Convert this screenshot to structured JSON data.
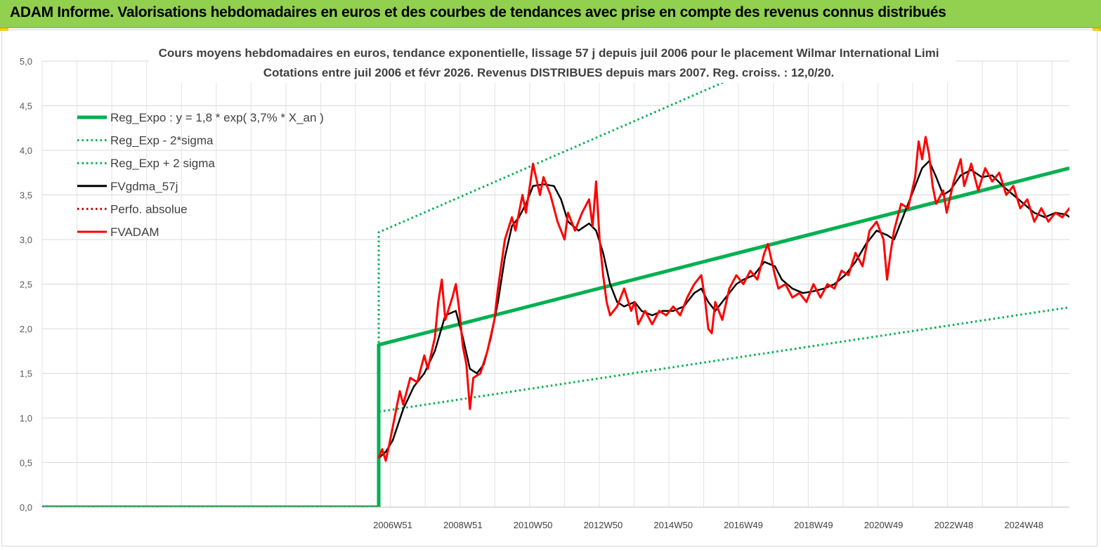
{
  "header": {
    "banner_title": "ADAM Informe. Valorisations hebdomadaires en euros et des courbes de tendances avec prise en compte des revenus connus distribués",
    "banner_color": "#92d050"
  },
  "chart_data": {
    "type": "line",
    "title": "Cours moyens hebdomadaires en euros, tendance exponentielle, lissage 57 j depuis juil 2006 pour le placement Wilmar International Limi",
    "subtitle": "Cotations entre juil 2006 et févr 2026.  Revenus DISTRIBUES depuis mars 2007. Reg. croiss. : 12,0/20.",
    "ylim": [
      0,
      5
    ],
    "y_ticks": [
      "0,0",
      "0,5",
      "1,0",
      "1,5",
      "2,0",
      "2,5",
      "3,0",
      "3,5",
      "4,0",
      "4,5",
      "5,0"
    ],
    "x_ticks": [
      "2006W51",
      "2008W51",
      "2010W50",
      "2012W50",
      "2014W50",
      "2016W49",
      "2018W49",
      "2020W49",
      "2022W48",
      "2024W48"
    ],
    "xlim": [
      1997.0,
      2026.3
    ],
    "grid": true,
    "legend_position": "top-left",
    "series": [
      {
        "name": "Reg_Expo : y = 1,8 * exp( 3,7% *  X_an )",
        "color": "#00b050",
        "style": "solid",
        "points": [
          [
            1997.0,
            0
          ],
          [
            2006.6,
            0
          ],
          [
            2006.6,
            1.82
          ],
          [
            2026.3,
            3.8
          ]
        ]
      },
      {
        "name": "Reg_Exp - 2*sigma",
        "color": "#00b050",
        "style": "dotted",
        "points": [
          [
            2006.6,
            0
          ],
          [
            2006.6,
            1.07
          ],
          [
            2026.3,
            2.24
          ]
        ]
      },
      {
        "name": "Reg_Exp + 2 sigma",
        "color": "#00b050",
        "style": "dotted",
        "points": [
          [
            2006.6,
            0
          ],
          [
            2006.6,
            3.08
          ],
          [
            2026.3,
            6.45
          ]
        ]
      },
      {
        "name": "FVgdma_57j",
        "color": "#000000",
        "style": "solid",
        "points": [
          [
            2006.6,
            0.55
          ],
          [
            2006.8,
            0.62
          ],
          [
            2007.0,
            0.75
          ],
          [
            2007.3,
            1.1
          ],
          [
            2007.6,
            1.35
          ],
          [
            2007.9,
            1.5
          ],
          [
            2008.2,
            1.75
          ],
          [
            2008.5,
            2.15
          ],
          [
            2008.8,
            2.2
          ],
          [
            2009.0,
            1.9
          ],
          [
            2009.2,
            1.55
          ],
          [
            2009.4,
            1.5
          ],
          [
            2009.6,
            1.6
          ],
          [
            2009.8,
            1.9
          ],
          [
            2010.0,
            2.3
          ],
          [
            2010.2,
            2.8
          ],
          [
            2010.4,
            3.15
          ],
          [
            2010.6,
            3.25
          ],
          [
            2010.8,
            3.4
          ],
          [
            2011.0,
            3.6
          ],
          [
            2011.3,
            3.62
          ],
          [
            2011.6,
            3.6
          ],
          [
            2011.8,
            3.45
          ],
          [
            2012.0,
            3.2
          ],
          [
            2012.3,
            3.1
          ],
          [
            2012.6,
            3.18
          ],
          [
            2012.8,
            3.1
          ],
          [
            2013.0,
            2.85
          ],
          [
            2013.2,
            2.5
          ],
          [
            2013.4,
            2.3
          ],
          [
            2013.6,
            2.25
          ],
          [
            2013.9,
            2.3
          ],
          [
            2014.1,
            2.2
          ],
          [
            2014.4,
            2.15
          ],
          [
            2014.7,
            2.2
          ],
          [
            2015.0,
            2.2
          ],
          [
            2015.3,
            2.25
          ],
          [
            2015.6,
            2.4
          ],
          [
            2015.8,
            2.45
          ],
          [
            2016.0,
            2.3
          ],
          [
            2016.2,
            2.2
          ],
          [
            2016.5,
            2.35
          ],
          [
            2016.8,
            2.5
          ],
          [
            2017.0,
            2.55
          ],
          [
            2017.3,
            2.6
          ],
          [
            2017.6,
            2.75
          ],
          [
            2017.9,
            2.7
          ],
          [
            2018.1,
            2.55
          ],
          [
            2018.4,
            2.45
          ],
          [
            2018.7,
            2.4
          ],
          [
            2019.0,
            2.42
          ],
          [
            2019.3,
            2.45
          ],
          [
            2019.6,
            2.5
          ],
          [
            2019.9,
            2.6
          ],
          [
            2020.2,
            2.75
          ],
          [
            2020.5,
            2.95
          ],
          [
            2020.8,
            3.1
          ],
          [
            2021.1,
            3.05
          ],
          [
            2021.3,
            3.0
          ],
          [
            2021.5,
            3.2
          ],
          [
            2021.8,
            3.5
          ],
          [
            2022.1,
            3.8
          ],
          [
            2022.3,
            3.88
          ],
          [
            2022.5,
            3.7
          ],
          [
            2022.7,
            3.5
          ],
          [
            2022.9,
            3.55
          ],
          [
            2023.2,
            3.72
          ],
          [
            2023.5,
            3.78
          ],
          [
            2023.8,
            3.7
          ],
          [
            2024.1,
            3.72
          ],
          [
            2024.4,
            3.6
          ],
          [
            2024.7,
            3.5
          ],
          [
            2025.0,
            3.4
          ],
          [
            2025.3,
            3.3
          ],
          [
            2025.6,
            3.25
          ],
          [
            2025.9,
            3.3
          ],
          [
            2026.2,
            3.28
          ],
          [
            2026.5,
            3.2
          ],
          [
            2026.8,
            3.25
          ],
          [
            2027.0,
            3.35
          ],
          [
            2027.3,
            3.48
          ]
        ]
      },
      {
        "name": "Perfo. absolue",
        "color": "#c00000",
        "style": "dotted",
        "points": [
          [
            1997.0,
            0
          ],
          [
            2006.6,
            0
          ]
        ]
      },
      {
        "name": "FVADAM",
        "color": "#ff0000",
        "style": "solid",
        "points": [
          [
            2006.6,
            0.55
          ],
          [
            2006.7,
            0.65
          ],
          [
            2006.8,
            0.52
          ],
          [
            2006.9,
            0.7
          ],
          [
            2007.0,
            0.9
          ],
          [
            2007.2,
            1.3
          ],
          [
            2007.3,
            1.15
          ],
          [
            2007.5,
            1.45
          ],
          [
            2007.7,
            1.4
          ],
          [
            2007.9,
            1.7
          ],
          [
            2008.0,
            1.55
          ],
          [
            2008.2,
            1.9
          ],
          [
            2008.3,
            2.3
          ],
          [
            2008.4,
            2.55
          ],
          [
            2008.5,
            2.1
          ],
          [
            2008.7,
            2.35
          ],
          [
            2008.8,
            2.5
          ],
          [
            2008.9,
            2.2
          ],
          [
            2009.0,
            1.8
          ],
          [
            2009.1,
            1.6
          ],
          [
            2009.2,
            1.1
          ],
          [
            2009.3,
            1.45
          ],
          [
            2009.5,
            1.5
          ],
          [
            2009.7,
            1.75
          ],
          [
            2009.9,
            2.1
          ],
          [
            2010.0,
            2.45
          ],
          [
            2010.2,
            3.0
          ],
          [
            2010.4,
            3.25
          ],
          [
            2010.5,
            3.1
          ],
          [
            2010.7,
            3.5
          ],
          [
            2010.8,
            3.3
          ],
          [
            2011.0,
            3.85
          ],
          [
            2011.2,
            3.5
          ],
          [
            2011.3,
            3.7
          ],
          [
            2011.5,
            3.5
          ],
          [
            2011.7,
            3.2
          ],
          [
            2011.9,
            3.0
          ],
          [
            2012.0,
            3.3
          ],
          [
            2012.2,
            3.1
          ],
          [
            2012.4,
            3.3
          ],
          [
            2012.6,
            3.45
          ],
          [
            2012.7,
            3.15
          ],
          [
            2012.8,
            3.65
          ],
          [
            2012.9,
            3.0
          ],
          [
            2013.0,
            2.6
          ],
          [
            2013.1,
            2.3
          ],
          [
            2013.2,
            2.15
          ],
          [
            2013.4,
            2.25
          ],
          [
            2013.6,
            2.45
          ],
          [
            2013.8,
            2.2
          ],
          [
            2013.9,
            2.3
          ],
          [
            2014.0,
            2.05
          ],
          [
            2014.2,
            2.2
          ],
          [
            2014.4,
            2.05
          ],
          [
            2014.6,
            2.2
          ],
          [
            2014.8,
            2.15
          ],
          [
            2015.0,
            2.25
          ],
          [
            2015.2,
            2.15
          ],
          [
            2015.4,
            2.35
          ],
          [
            2015.6,
            2.5
          ],
          [
            2015.8,
            2.6
          ],
          [
            2015.9,
            2.35
          ],
          [
            2016.0,
            2.0
          ],
          [
            2016.1,
            1.95
          ],
          [
            2016.2,
            2.3
          ],
          [
            2016.4,
            2.1
          ],
          [
            2016.6,
            2.45
          ],
          [
            2016.8,
            2.6
          ],
          [
            2017.0,
            2.5
          ],
          [
            2017.2,
            2.65
          ],
          [
            2017.4,
            2.55
          ],
          [
            2017.6,
            2.85
          ],
          [
            2017.7,
            2.95
          ],
          [
            2017.9,
            2.6
          ],
          [
            2018.0,
            2.45
          ],
          [
            2018.2,
            2.5
          ],
          [
            2018.4,
            2.35
          ],
          [
            2018.6,
            2.4
          ],
          [
            2018.8,
            2.3
          ],
          [
            2019.0,
            2.5
          ],
          [
            2019.2,
            2.35
          ],
          [
            2019.4,
            2.5
          ],
          [
            2019.6,
            2.45
          ],
          [
            2019.8,
            2.65
          ],
          [
            2020.0,
            2.6
          ],
          [
            2020.2,
            2.85
          ],
          [
            2020.4,
            2.7
          ],
          [
            2020.6,
            3.1
          ],
          [
            2020.8,
            3.2
          ],
          [
            2021.0,
            3.0
          ],
          [
            2021.1,
            2.55
          ],
          [
            2021.2,
            2.85
          ],
          [
            2021.3,
            3.1
          ],
          [
            2021.5,
            3.4
          ],
          [
            2021.7,
            3.35
          ],
          [
            2021.9,
            3.7
          ],
          [
            2022.0,
            4.1
          ],
          [
            2022.1,
            3.9
          ],
          [
            2022.2,
            4.15
          ],
          [
            2022.3,
            3.95
          ],
          [
            2022.4,
            3.6
          ],
          [
            2022.5,
            3.4
          ],
          [
            2022.7,
            3.55
          ],
          [
            2022.8,
            3.3
          ],
          [
            2023.0,
            3.65
          ],
          [
            2023.2,
            3.9
          ],
          [
            2023.3,
            3.6
          ],
          [
            2023.5,
            3.85
          ],
          [
            2023.7,
            3.55
          ],
          [
            2023.9,
            3.8
          ],
          [
            2024.1,
            3.65
          ],
          [
            2024.3,
            3.75
          ],
          [
            2024.5,
            3.5
          ],
          [
            2024.7,
            3.6
          ],
          [
            2024.9,
            3.35
          ],
          [
            2025.1,
            3.45
          ],
          [
            2025.3,
            3.2
          ],
          [
            2025.5,
            3.35
          ],
          [
            2025.7,
            3.2
          ],
          [
            2025.9,
            3.3
          ],
          [
            2026.1,
            3.25
          ],
          [
            2026.3,
            3.35
          ],
          [
            2026.5,
            3.15
          ],
          [
            2026.7,
            3.1
          ],
          [
            2026.9,
            3.4
          ],
          [
            2027.1,
            3.25
          ],
          [
            2027.3,
            3.58
          ]
        ]
      }
    ]
  }
}
